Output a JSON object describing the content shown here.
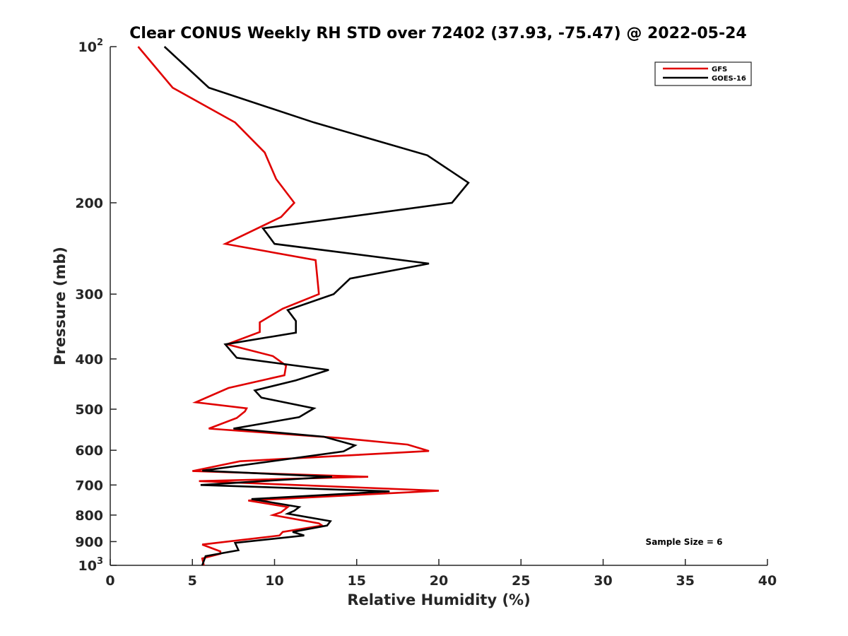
{
  "chart_data": {
    "type": "line",
    "title": "Clear CONUS Weekly RH STD over 72402 (37.93, -75.47) @ 2022-05-24",
    "xlabel": "Relative Humidity (%)",
    "ylabel": "Pressure (mb)",
    "xlim": [
      0,
      40
    ],
    "ylim": [
      100,
      1000
    ],
    "yscale": "log",
    "y_reversed": true,
    "grid": false,
    "legend_position": "top-right",
    "x_ticks": [
      0,
      5,
      10,
      15,
      20,
      25,
      30,
      35,
      40
    ],
    "x_tick_labels": [
      "0",
      "5",
      "10",
      "15",
      "20",
      "25",
      "30",
      "35",
      "40"
    ],
    "y_ticks": [
      100,
      200,
      300,
      400,
      500,
      600,
      700,
      800,
      900,
      1000
    ],
    "y_tick_labels": [
      {
        "base": "10",
        "sup": "2"
      },
      {
        "base": "200",
        "sup": ""
      },
      {
        "base": "300",
        "sup": ""
      },
      {
        "base": "400",
        "sup": ""
      },
      {
        "base": "500",
        "sup": ""
      },
      {
        "base": "600",
        "sup": ""
      },
      {
        "base": "700",
        "sup": ""
      },
      {
        "base": "800",
        "sup": ""
      },
      {
        "base": "900",
        "sup": ""
      },
      {
        "base": "10",
        "sup": "3"
      }
    ],
    "annotation": "Sample Size = 6",
    "series": [
      {
        "name": "GFS",
        "color": "#e00000",
        "points": [
          [
            1.7,
            100
          ],
          [
            3.8,
            120
          ],
          [
            7.6,
            140
          ],
          [
            9.4,
            160
          ],
          [
            10.1,
            180
          ],
          [
            11.2,
            200
          ],
          [
            10.4,
            213
          ],
          [
            7.0,
            240
          ],
          [
            12.5,
            258
          ],
          [
            12.7,
            300
          ],
          [
            10.5,
            320
          ],
          [
            9.1,
            340
          ],
          [
            9.1,
            355
          ],
          [
            7.1,
            375
          ],
          [
            9.9,
            395
          ],
          [
            10.7,
            412
          ],
          [
            10.6,
            430
          ],
          [
            7.2,
            455
          ],
          [
            5.2,
            485
          ],
          [
            8.3,
            498
          ],
          [
            8.2,
            505
          ],
          [
            7.7,
            520
          ],
          [
            6.0,
            545
          ],
          [
            13.9,
            568
          ],
          [
            18.1,
            585
          ],
          [
            19.4,
            602
          ],
          [
            7.9,
            630
          ],
          [
            5.0,
            658
          ],
          [
            15.7,
            675
          ],
          [
            5.4,
            688
          ],
          [
            20.0,
            718
          ],
          [
            8.4,
            750
          ],
          [
            10.8,
            772
          ],
          [
            10.4,
            790
          ],
          [
            9.9,
            800
          ],
          [
            12.7,
            830
          ],
          [
            12.9,
            838
          ],
          [
            10.5,
            862
          ],
          [
            10.3,
            876
          ],
          [
            5.6,
            912
          ],
          [
            6.7,
            940
          ],
          [
            6.7,
            950
          ],
          [
            5.6,
            970
          ],
          [
            5.7,
            1000
          ]
        ]
      },
      {
        "name": "GOES-16",
        "color": "#000000",
        "points": [
          [
            3.3,
            100
          ],
          [
            6.0,
            120
          ],
          [
            12.4,
            140
          ],
          [
            19.3,
            162
          ],
          [
            21.8,
            183
          ],
          [
            20.8,
            200
          ],
          [
            9.3,
            224
          ],
          [
            10.0,
            240
          ],
          [
            19.4,
            262
          ],
          [
            14.6,
            280
          ],
          [
            13.6,
            300
          ],
          [
            10.8,
            322
          ],
          [
            11.3,
            338
          ],
          [
            11.3,
            356
          ],
          [
            7.0,
            375
          ],
          [
            7.7,
            398
          ],
          [
            13.3,
            420
          ],
          [
            11.3,
            440
          ],
          [
            8.8,
            460
          ],
          [
            9.2,
            475
          ],
          [
            12.4,
            498
          ],
          [
            11.5,
            518
          ],
          [
            7.5,
            545
          ],
          [
            13.0,
            565
          ],
          [
            14.9,
            587
          ],
          [
            14.2,
            603
          ],
          [
            5.6,
            657
          ],
          [
            13.5,
            675
          ],
          [
            5.5,
            700
          ],
          [
            17.0,
            720
          ],
          [
            8.6,
            745
          ],
          [
            11.5,
            772
          ],
          [
            11.2,
            785
          ],
          [
            10.8,
            795
          ],
          [
            13.4,
            822
          ],
          [
            13.2,
            838
          ],
          [
            11.1,
            862
          ],
          [
            11.8,
            876
          ],
          [
            7.6,
            905
          ],
          [
            7.8,
            935
          ],
          [
            5.8,
            960
          ],
          [
            5.6,
            1000
          ]
        ]
      }
    ]
  }
}
